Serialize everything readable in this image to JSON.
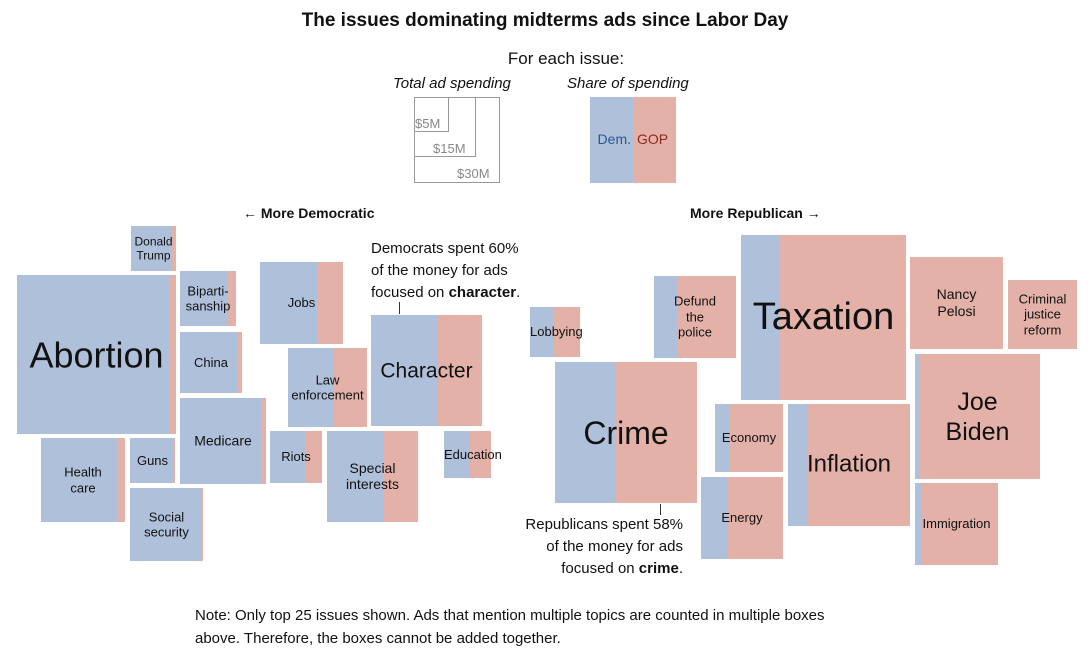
{
  "title": "The issues dominating midterms ads since Labor Day",
  "legend": {
    "subtitle": "For each issue:",
    "size_title": "Total ad spending",
    "size_labels": [
      "$5M",
      "$15M",
      "$30M"
    ],
    "share_title": "Share of spending",
    "dem_label": "Dem.",
    "gop_label": "GOP"
  },
  "directions": {
    "left": "← More Democratic",
    "right": "More Republican →"
  },
  "annotations": {
    "dem": {
      "line1": "Democrats spent 60%",
      "line2": "of the money for ads",
      "line3_pre": "focused on ",
      "line3_bold": "character",
      "line3_post": "."
    },
    "gop": {
      "line1": "Republicans spent 58%",
      "line2": "of the money for ads",
      "line3_pre": "focused on ",
      "line3_bold": "crime",
      "line3_post": "."
    }
  },
  "note": {
    "line1": "Note: Only top 25 issues shown. Ads that mention multiple topics are counted in multiple boxes",
    "line2": "above. Therefore, the boxes cannot be added together."
  },
  "colors": {
    "dem": "#afc0db",
    "gop": "#e4b1a8",
    "dem_text": "#2f5590",
    "gop_text": "#8e2a20"
  },
  "chart_data": {
    "type": "treemap-squares",
    "size_unit": "million USD (approx.)",
    "issues": [
      {
        "key": "trump",
        "label": "Donald\nTrump",
        "spending": 9,
        "dem_share": 0.9
      },
      {
        "key": "abortion",
        "label": "Abortion",
        "spending": 105,
        "dem_share": 0.96
      },
      {
        "key": "bipart",
        "label": "Biparti-\nsanship",
        "spending": 14,
        "dem_share": 0.85
      },
      {
        "key": "china",
        "label": "China",
        "spending": 17,
        "dem_share": 0.92
      },
      {
        "key": "medicare",
        "label": "Medicare",
        "spending": 31,
        "dem_share": 0.94
      },
      {
        "key": "health",
        "label": "Health\ncare",
        "spending": 30,
        "dem_share": 0.91
      },
      {
        "key": "guns",
        "label": "Guns",
        "spending": 9,
        "dem_share": 0.97
      },
      {
        "key": "socsec",
        "label": "Social\nsecurity",
        "spending": 23,
        "dem_share": 0.97
      },
      {
        "key": "jobs",
        "label": "Jobs",
        "spending": 29,
        "dem_share": 0.69
      },
      {
        "key": "law",
        "label": "Law\nenforcement",
        "spending": 27,
        "dem_share": 0.58
      },
      {
        "key": "character",
        "label": "Character",
        "spending": 52,
        "dem_share": 0.6
      },
      {
        "key": "riots",
        "label": "Riots",
        "spending": 12,
        "dem_share": 0.7
      },
      {
        "key": "special",
        "label": "Special\ninterests",
        "spending": 35,
        "dem_share": 0.62
      },
      {
        "key": "education",
        "label": "Education",
        "spending": 10,
        "dem_share": 0.55
      },
      {
        "key": "lobbying",
        "label": "Lobbying",
        "spending": 11,
        "dem_share": 0.48
      },
      {
        "key": "defund",
        "label": "Defund\nthe\npolice",
        "spending": 29,
        "dem_share": 0.28
      },
      {
        "key": "taxation",
        "label": "Taxation",
        "spending": 113,
        "dem_share": 0.23
      },
      {
        "key": "pelosi",
        "label": "Nancy\nPelosi",
        "spending": 37,
        "dem_share": 0.0
      },
      {
        "key": "cjreform",
        "label": "Criminal\njustice\nreform",
        "spending": 20,
        "dem_share": 0.0
      },
      {
        "key": "crime",
        "label": "Crime",
        "spending": 84,
        "dem_share": 0.42
      },
      {
        "key": "economy",
        "label": "Economy",
        "spending": 20,
        "dem_share": 0.21
      },
      {
        "key": "energy",
        "label": "Energy",
        "spending": 29,
        "dem_share": 0.32
      },
      {
        "key": "inflation",
        "label": "Inflation",
        "spending": 62,
        "dem_share": 0.16
      },
      {
        "key": "biden",
        "label": "Joe\nBiden",
        "spending": 65,
        "dem_share": 0.04
      },
      {
        "key": "immigration",
        "label": "Immigration",
        "spending": 29,
        "dem_share": 0.08
      }
    ]
  }
}
